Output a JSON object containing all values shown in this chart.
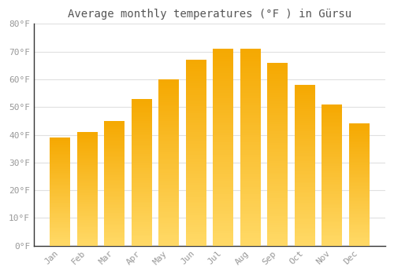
{
  "months": [
    "Jan",
    "Feb",
    "Mar",
    "Apr",
    "May",
    "Jun",
    "Jul",
    "Aug",
    "Sep",
    "Oct",
    "Nov",
    "Dec"
  ],
  "values": [
    39,
    41,
    45,
    53,
    60,
    67,
    71,
    71,
    66,
    58,
    51,
    44
  ],
  "bar_color_top": "#F5A800",
  "bar_color_bottom": "#FFD966",
  "title": "Average monthly temperatures (°F ) in Gürsu",
  "ylim": [
    0,
    80
  ],
  "yticks": [
    0,
    10,
    20,
    30,
    40,
    50,
    60,
    70,
    80
  ],
  "ytick_labels": [
    "0°F",
    "10°F",
    "20°F",
    "30°F",
    "40°F",
    "50°F",
    "60°F",
    "70°F",
    "80°F"
  ],
  "background_color": "#ffffff",
  "grid_color": "#e0e0e0",
  "title_fontsize": 10,
  "tick_fontsize": 8,
  "bar_width": 0.75,
  "tick_color": "#999999",
  "spine_color": "#333333"
}
